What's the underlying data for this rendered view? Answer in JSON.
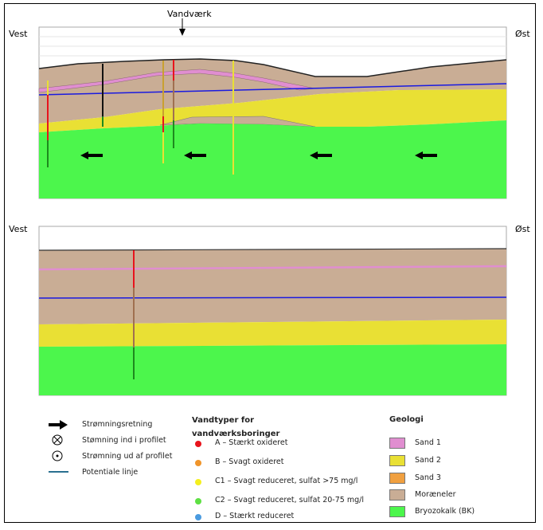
{
  "profile1": {
    "west": "Vest",
    "east": "Øst",
    "waterworks": "Vandværk"
  },
  "profile2": {
    "west": "Vest",
    "east": "Øst"
  },
  "legend_symbols": [
    {
      "icon": "arrow-right-icon",
      "label": "Strømningsretning"
    },
    {
      "icon": "circle-x-icon",
      "label": "Stømning ind i profilet"
    },
    {
      "icon": "circle-dot-icon",
      "label": "Strømning ud af profilet"
    },
    {
      "icon": "line-icon",
      "label": "Potentiale linje"
    }
  ],
  "water_types": {
    "title1": "Vandtyper for",
    "title2": "vandværksboringer",
    "items": [
      {
        "label": "A – Stærkt oxideret",
        "color": "#e8141c"
      },
      {
        "label": "B – Svagt oxideret",
        "color": "#f0952a"
      },
      {
        "label": "C1 – Svagt reduceret, sulfat >75 mg/l",
        "color": "#f4ef1e"
      },
      {
        "label": "C2 – Svagt reduceret, sulfat 20-75 mg/l",
        "color": "#5ee043"
      },
      {
        "label": "D – Stærkt reduceret",
        "color": "#4a9be0"
      }
    ]
  },
  "geology": {
    "title": "Geologi",
    "items": [
      {
        "label": "Sand 1",
        "color": "#e08ed0"
      },
      {
        "label": "Sand 2",
        "color": "#e9e034"
      },
      {
        "label": "Sand 3",
        "color": "#f0a040"
      },
      {
        "label": "Moræneler",
        "color": "#c9ad95"
      },
      {
        "label": "Bryozokalk (BK)",
        "color": "#4cf64c"
      }
    ]
  }
}
